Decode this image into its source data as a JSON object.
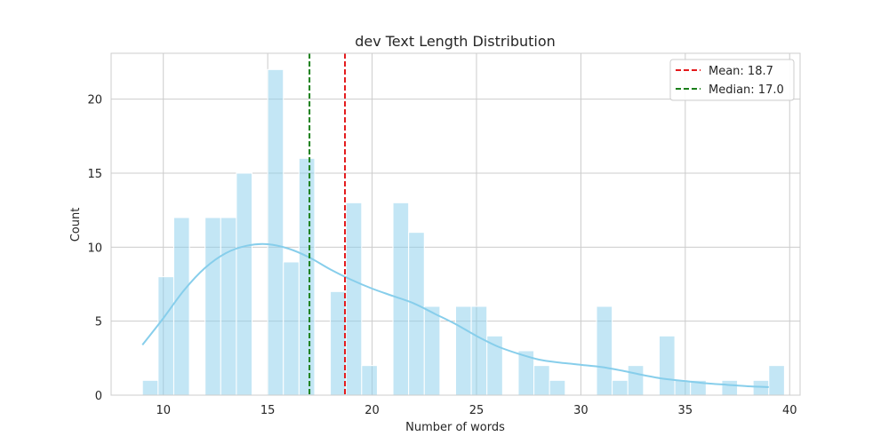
{
  "chart_data": {
    "type": "histogram",
    "title": "dev Text Length Distribution",
    "xlabel": "Number of words",
    "ylabel": "Count",
    "xlim": [
      7.5,
      40.5
    ],
    "ylim": [
      0,
      23.1
    ],
    "xticks": [
      10,
      15,
      20,
      25,
      30,
      35,
      40
    ],
    "yticks": [
      0,
      5,
      10,
      15,
      20
    ],
    "grid": true,
    "legend_position": "top-right",
    "bin_start": 9,
    "bin_width": 0.75,
    "counts": [
      1,
      8,
      12,
      0,
      12,
      12,
      15,
      0,
      22,
      9,
      16,
      0,
      7,
      13,
      2,
      0,
      13,
      11,
      6,
      0,
      6,
      6,
      4,
      0,
      3,
      2,
      1,
      0,
      0,
      6,
      1,
      2,
      0,
      4,
      1,
      1,
      0,
      1,
      0,
      1,
      2
    ],
    "kde": {
      "x": [
        9,
        10,
        11,
        12,
        13,
        14,
        15,
        16,
        17,
        18,
        19,
        20,
        21,
        22,
        23,
        24,
        25,
        26,
        27,
        28,
        29,
        30,
        31,
        32,
        33,
        34,
        35,
        36,
        37,
        38,
        39
      ],
      "y": [
        3.4,
        5.2,
        7.1,
        8.6,
        9.6,
        10.1,
        10.2,
        9.9,
        9.3,
        8.5,
        7.8,
        7.2,
        6.7,
        6.2,
        5.5,
        4.8,
        4.0,
        3.3,
        2.8,
        2.4,
        2.2,
        2.05,
        1.9,
        1.65,
        1.35,
        1.1,
        0.95,
        0.8,
        0.7,
        0.6,
        0.55
      ]
    },
    "reference_lines": [
      {
        "name": "Mean: 18.7",
        "value": 18.7,
        "color": "#e41a1c"
      },
      {
        "name": "Median: 17.0",
        "value": 17.0,
        "color": "#1a7f1a"
      }
    ],
    "colors": {
      "bar_fill": "#87ceeb",
      "kde_line": "#87ceeb",
      "grid": "#cccccc",
      "axes_edge": "#cccccc"
    }
  }
}
